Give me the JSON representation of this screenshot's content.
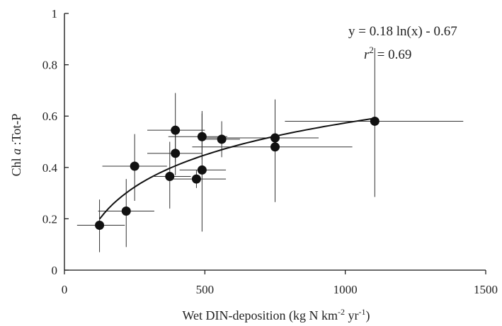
{
  "chart_data": {
    "type": "scatter",
    "xlabel_parts": [
      "Wet DIN-deposition (kg N km",
      "-2",
      " yr",
      "-1",
      ")"
    ],
    "ylabel_parts": [
      "Chl ",
      "a",
      " :Tot-P"
    ],
    "xlim": [
      0,
      1500
    ],
    "ylim": [
      0,
      1
    ],
    "xticks": [
      0,
      500,
      1000,
      1500
    ],
    "yticks": [
      0,
      0.2,
      0.4,
      0.6,
      0.8,
      1
    ],
    "xtick_labels": [
      "0",
      "500",
      "1000",
      "1500"
    ],
    "ytick_labels": [
      "0",
      "0.2",
      "0.4",
      "0.6",
      "0.8",
      "1"
    ],
    "grid": false,
    "points": [
      {
        "x": 125,
        "y": 0.175,
        "xerr": [
          45,
          215
        ],
        "yerr": [
          0.07,
          0.275
        ]
      },
      {
        "x": 220,
        "y": 0.23,
        "xerr": [
          120,
          320
        ],
        "yerr": [
          0.09,
          0.355
        ]
      },
      {
        "x": 250,
        "y": 0.405,
        "xerr": [
          135,
          365
        ],
        "yerr": [
          0.27,
          0.53
        ]
      },
      {
        "x": 375,
        "y": 0.365,
        "xerr": [
          320,
          450
        ],
        "yerr": [
          0.24,
          0.5
        ]
      },
      {
        "x": 395,
        "y": 0.545,
        "xerr": [
          295,
          500
        ],
        "yerr": [
          0.42,
          0.69
        ]
      },
      {
        "x": 395,
        "y": 0.455,
        "xerr": [
          295,
          490
        ],
        "yerr": [
          0.37,
          0.53
        ]
      },
      {
        "x": 470,
        "y": 0.355,
        "xerr": [
          380,
          575
        ],
        "yerr": [
          0.32,
          0.39
        ]
      },
      {
        "x": 490,
        "y": 0.52,
        "xerr": [
          370,
          580
        ],
        "yerr": [
          0.43,
          0.61
        ]
      },
      {
        "x": 490,
        "y": 0.39,
        "xerr": [
          410,
          575
        ],
        "yerr": [
          0.15,
          0.62
        ]
      },
      {
        "x": 560,
        "y": 0.51,
        "xerr": [
          490,
          625
        ],
        "yerr": [
          0.44,
          0.58
        ]
      },
      {
        "x": 750,
        "y": 0.515,
        "xerr": [
          500,
          905
        ],
        "yerr": [
          0.42,
          0.615
        ]
      },
      {
        "x": 750,
        "y": 0.48,
        "xerr": [
          455,
          1025
        ],
        "yerr": [
          0.265,
          0.665
        ]
      },
      {
        "x": 1105,
        "y": 0.58,
        "xerr": [
          785,
          1420
        ],
        "yerr": [
          0.285,
          0.865
        ]
      }
    ],
    "fit": {
      "type": "logarithmic",
      "a": 0.18,
      "b": -0.67,
      "x_range": [
        125,
        1105
      ]
    },
    "annotation": {
      "equation": "y = 0.18 ln(x) - 0.67",
      "r2_symbol": "r",
      "r2_sup": "2",
      "r2_value": " = 0.69"
    }
  }
}
